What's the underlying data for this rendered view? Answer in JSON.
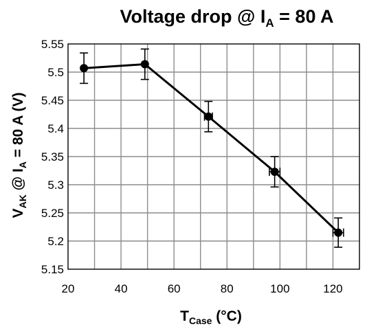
{
  "chart_data": {
    "type": "line",
    "title": {
      "main": "Voltage drop @ I",
      "sub": "A",
      "rest": " = 80 A"
    },
    "xlabel": {
      "main": "T",
      "sub": "Case",
      "rest": " (°C)"
    },
    "ylabel": {
      "p1": "V",
      "s1": "AK",
      "p2": " @ I",
      "s2": "A",
      "p3": " = 80 A (V)"
    },
    "xlim": [
      20,
      130
    ],
    "ylim": [
      5.15,
      5.55
    ],
    "xticks": [
      20,
      40,
      60,
      80,
      100,
      120
    ],
    "yticks": [
      5.15,
      5.2,
      5.25,
      5.3,
      5.35,
      5.4,
      5.45,
      5.5,
      5.55
    ],
    "xtick_labels": [
      "20",
      "40",
      "60",
      "80",
      "100",
      "120"
    ],
    "ytick_labels": [
      "5.15",
      "5.2",
      "5.25",
      "5.3",
      "5.35",
      "5.4",
      "5.45",
      "5.5",
      "5.55"
    ],
    "grid": true,
    "series": [
      {
        "x": [
          26,
          49,
          73,
          98,
          122
        ],
        "y": [
          5.507,
          5.514,
          5.421,
          5.323,
          5.215
        ],
        "yerr": [
          0.027,
          0.027,
          0.027,
          0.027,
          0.026
        ],
        "xerr": [
          0,
          0,
          1.5,
          2,
          2
        ]
      }
    ]
  }
}
